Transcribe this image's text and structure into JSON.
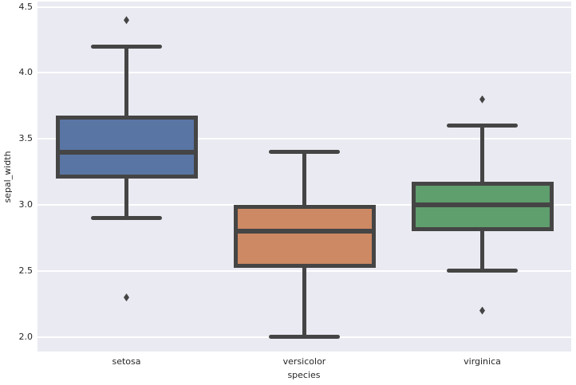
{
  "chart_data": {
    "type": "boxplot",
    "title": "",
    "xlabel": "species",
    "ylabel": "sepal_width",
    "categories": [
      "setosa",
      "versicolor",
      "virginica"
    ],
    "ylim": [
      1.89,
      4.54
    ],
    "yticks": [
      2.0,
      2.5,
      3.0,
      3.5,
      4.0,
      4.5
    ],
    "ytick_labels": [
      "2.0",
      "2.5",
      "3.0",
      "3.5",
      "4.0",
      "4.5"
    ],
    "grid": true,
    "legend": "none",
    "series": [
      {
        "name": "setosa",
        "fill_color": "#5975A4",
        "whisker_low": 2.9,
        "q1": 3.2,
        "median": 3.4,
        "q3": 3.675,
        "whisker_high": 4.2,
        "outliers": [
          4.4,
          2.3
        ]
      },
      {
        "name": "versicolor",
        "fill_color": "#CC8963",
        "whisker_low": 2.0,
        "q1": 2.525,
        "median": 2.8,
        "q3": 3.0,
        "whisker_high": 3.4,
        "outliers": []
      },
      {
        "name": "virginica",
        "fill_color": "#5F9E6D",
        "whisker_low": 2.5,
        "q1": 2.8,
        "median": 3.0,
        "q3": 3.175,
        "whisker_high": 3.6,
        "outliers": [
          3.8,
          2.2
        ]
      }
    ],
    "style": {
      "figure_background": "#FFFFFF",
      "plot_background": "#EAEAF2",
      "grid_color": "#FFFFFF",
      "line_color": "#454545",
      "tick_label_color": "#262626"
    }
  }
}
